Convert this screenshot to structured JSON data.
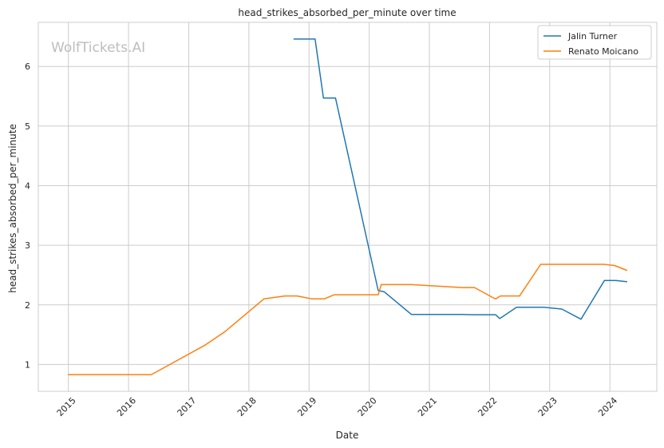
{
  "chart_data": {
    "type": "line",
    "title": "head_strikes_absorbed_per_minute over time",
    "xlabel": "Date",
    "ylabel": "head_strikes_absorbed_per_minute",
    "watermark": "WolfTickets.AI",
    "xlim": [
      2014.5,
      2024.78
    ],
    "ylim": [
      0.55,
      6.74
    ],
    "x_ticks": [
      2015,
      2016,
      2017,
      2018,
      2019,
      2020,
      2021,
      2022,
      2023,
      2024
    ],
    "x_tick_labels": [
      "2015",
      "2016",
      "2017",
      "2018",
      "2019",
      "2020",
      "2021",
      "2022",
      "2023",
      "2024"
    ],
    "y_ticks": [
      1,
      2,
      3,
      4,
      5,
      6
    ],
    "y_tick_labels": [
      "1",
      "2",
      "3",
      "4",
      "5",
      "6"
    ],
    "grid": true,
    "legend_position": "top-right",
    "series": [
      {
        "name": "Jalin Turner",
        "color": "#1f77b4",
        "points": [
          [
            2018.75,
            6.46
          ],
          [
            2019.1,
            6.46
          ],
          [
            2019.24,
            5.47
          ],
          [
            2019.44,
            5.47
          ],
          [
            2020.15,
            2.24
          ],
          [
            2020.25,
            2.22
          ],
          [
            2020.7,
            1.84
          ],
          [
            2021.55,
            1.84
          ],
          [
            2021.7,
            1.835
          ],
          [
            2022.1,
            1.835
          ],
          [
            2022.17,
            1.77
          ],
          [
            2022.45,
            1.96
          ],
          [
            2022.9,
            1.96
          ],
          [
            2023.2,
            1.93
          ],
          [
            2023.52,
            1.76
          ],
          [
            2023.91,
            2.41
          ],
          [
            2024.1,
            2.41
          ],
          [
            2024.28,
            2.39
          ]
        ]
      },
      {
        "name": "Renato Moicano",
        "color": "#ff7f0e",
        "points": [
          [
            2015.0,
            0.83
          ],
          [
            2016.0,
            0.83
          ],
          [
            2016.38,
            0.83
          ],
          [
            2017.28,
            1.33
          ],
          [
            2017.6,
            1.55
          ],
          [
            2018.25,
            2.1
          ],
          [
            2018.6,
            2.15
          ],
          [
            2018.8,
            2.15
          ],
          [
            2019.05,
            2.1
          ],
          [
            2019.25,
            2.1
          ],
          [
            2019.42,
            2.17
          ],
          [
            2020.15,
            2.17
          ],
          [
            2020.2,
            2.34
          ],
          [
            2020.7,
            2.34
          ],
          [
            2021.55,
            2.29
          ],
          [
            2021.75,
            2.29
          ],
          [
            2022.08,
            2.11
          ],
          [
            2022.1,
            2.1
          ],
          [
            2022.18,
            2.15
          ],
          [
            2022.5,
            2.15
          ],
          [
            2022.85,
            2.68
          ],
          [
            2023.9,
            2.68
          ],
          [
            2024.08,
            2.66
          ],
          [
            2024.28,
            2.58
          ]
        ]
      }
    ]
  }
}
